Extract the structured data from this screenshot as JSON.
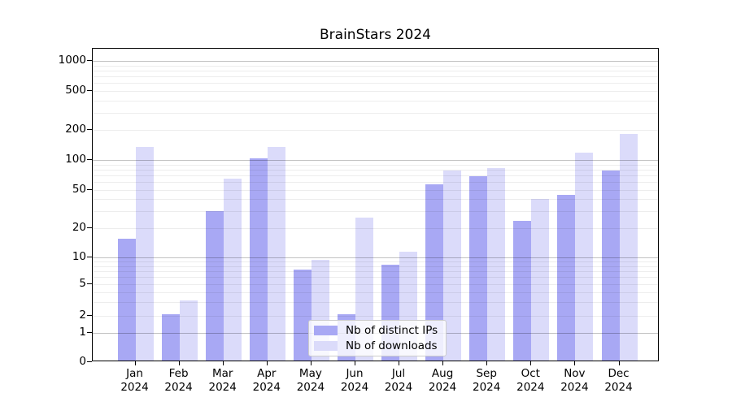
{
  "chart_data": {
    "type": "bar",
    "title": "BrainStars 2024",
    "categories": [
      {
        "month": "Jan",
        "year": "2024"
      },
      {
        "month": "Feb",
        "year": "2024"
      },
      {
        "month": "Mar",
        "year": "2024"
      },
      {
        "month": "Apr",
        "year": "2024"
      },
      {
        "month": "May",
        "year": "2024"
      },
      {
        "month": "Jun",
        "year": "2024"
      },
      {
        "month": "Jul",
        "year": "2024"
      },
      {
        "month": "Aug",
        "year": "2024"
      },
      {
        "month": "Sep",
        "year": "2024"
      },
      {
        "month": "Oct",
        "year": "2024"
      },
      {
        "month": "Nov",
        "year": "2024"
      },
      {
        "month": "Dec",
        "year": "2024"
      }
    ],
    "series": [
      {
        "name": "Nb of distinct IPs",
        "color": "#a8a8f4",
        "values": [
          15,
          2,
          29,
          100,
          7,
          2,
          8,
          55,
          66,
          23,
          43,
          75
        ]
      },
      {
        "name": "Nb of downloads",
        "color": "#dbdbfa",
        "values": [
          129,
          3,
          63,
          131,
          9,
          25,
          11,
          76,
          80,
          39,
          115,
          177
        ]
      }
    ],
    "y_axis": {
      "scale": "symlog",
      "ticks": [
        {
          "label": "1000",
          "value": 1000
        },
        {
          "label": "500",
          "value": 500
        },
        {
          "label": "200",
          "value": 200
        },
        {
          "label": "100",
          "value": 100
        },
        {
          "label": "50",
          "value": 50
        },
        {
          "label": "20",
          "value": 20
        },
        {
          "label": "10",
          "value": 10
        },
        {
          "label": "5",
          "value": 5
        },
        {
          "label": "2",
          "value": 2
        },
        {
          "label": "1",
          "value": 1
        },
        {
          "label": "0",
          "value": 0
        }
      ],
      "ylim": [
        0,
        1320
      ],
      "grid": true
    },
    "legend": {
      "position": "inside-bottom-center"
    }
  }
}
